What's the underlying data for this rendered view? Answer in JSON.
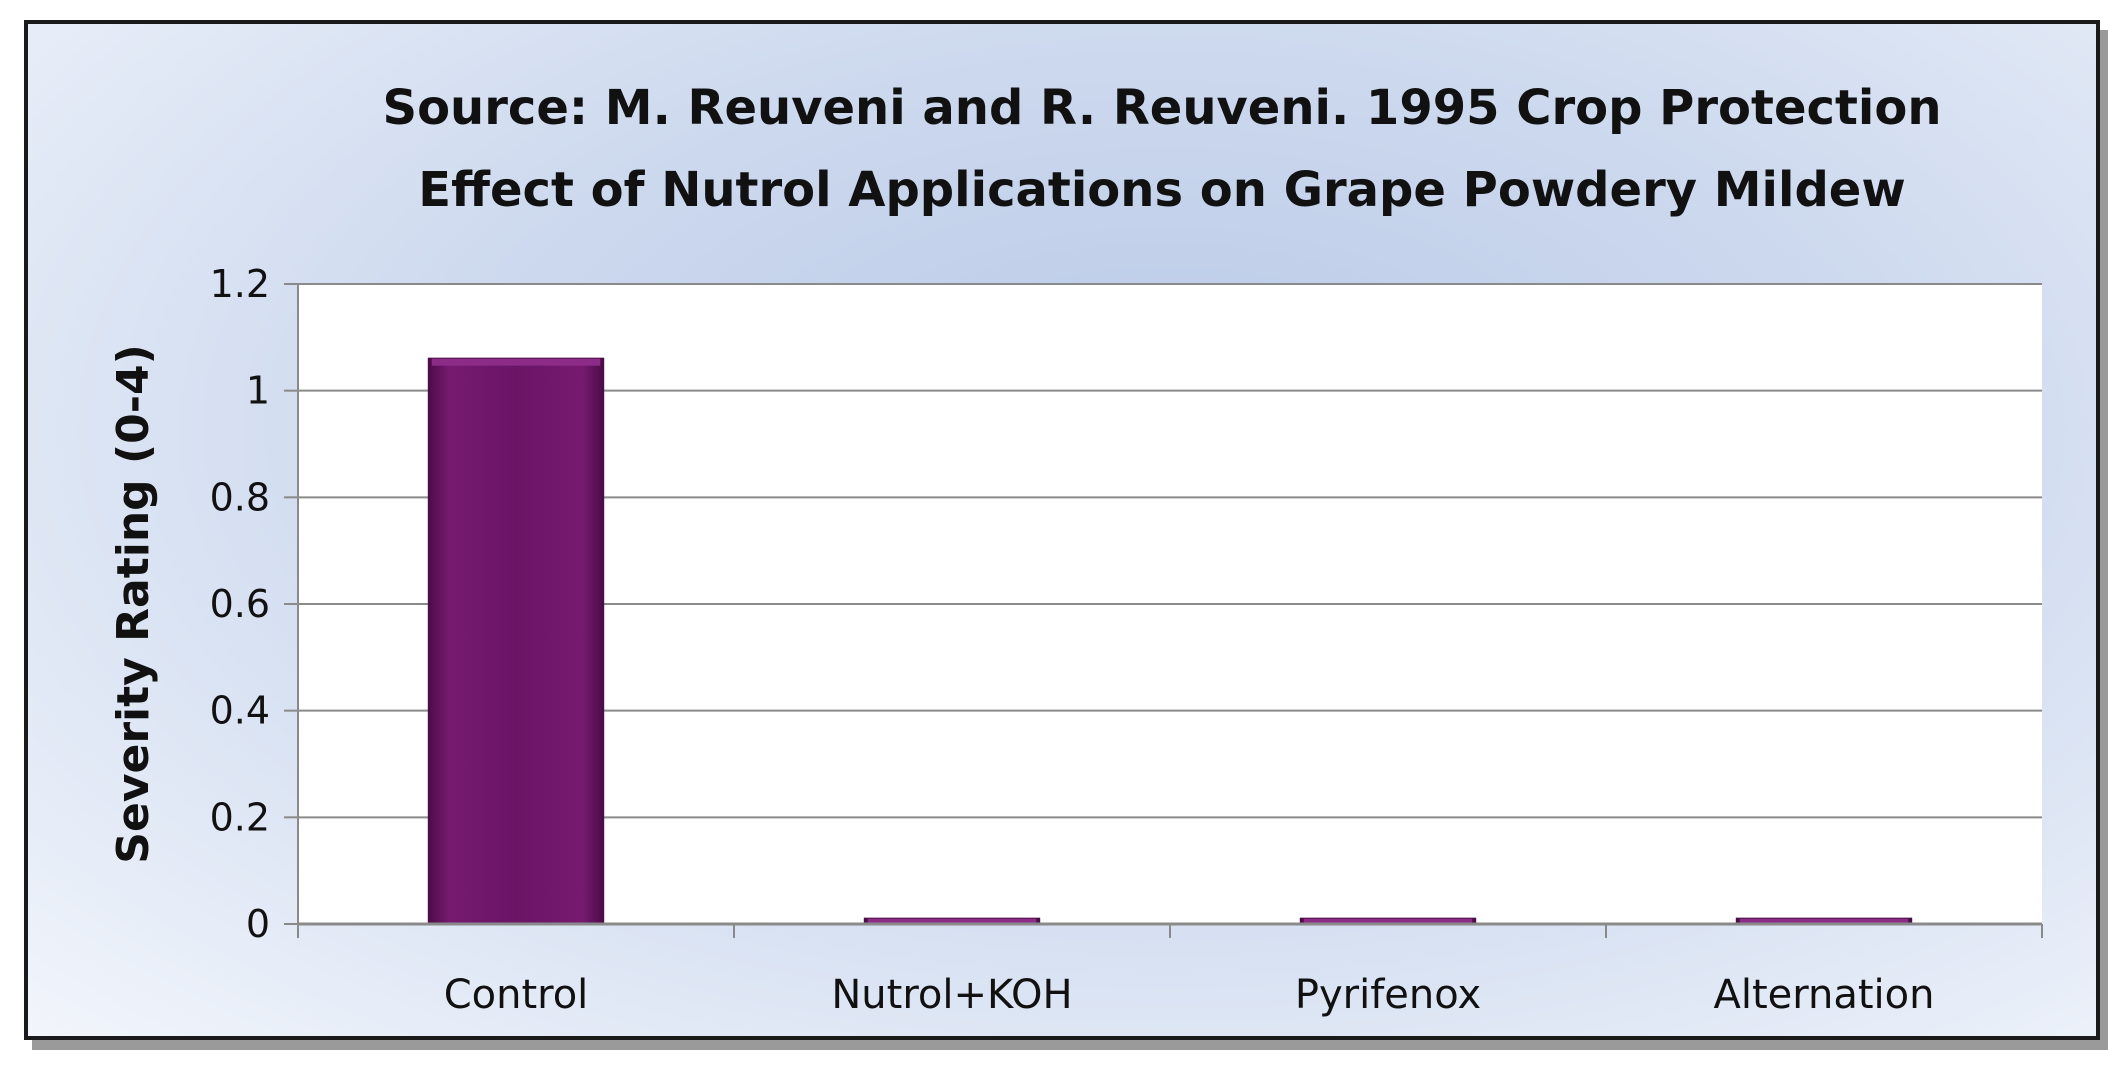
{
  "chart_data": {
    "type": "bar",
    "title_line1": "Source: M. Reuveni and R. Reuveni. 1995 Crop Protection",
    "title_line2": "Effect of Nutrol Applications on Grape Powdery Mildew",
    "ylabel": "Severity Rating (0-4)",
    "xlabel": "",
    "categories": [
      "Control",
      "Nutrol+KOH",
      "Pyrifenox",
      "Alternation"
    ],
    "values": [
      1.06,
      0.01,
      0.01,
      0.01
    ],
    "yticks": [
      "0",
      "0.2",
      "0.4",
      "0.6",
      "0.8",
      "1",
      "1.2"
    ],
    "ylim": [
      0,
      1.2
    ],
    "grid": true,
    "legend": "none",
    "colors": {
      "bar": "#6b1466",
      "bar_edge": "#4a0d47",
      "plot_bg": "#ffffff",
      "grid": "#8a8a8a"
    }
  }
}
